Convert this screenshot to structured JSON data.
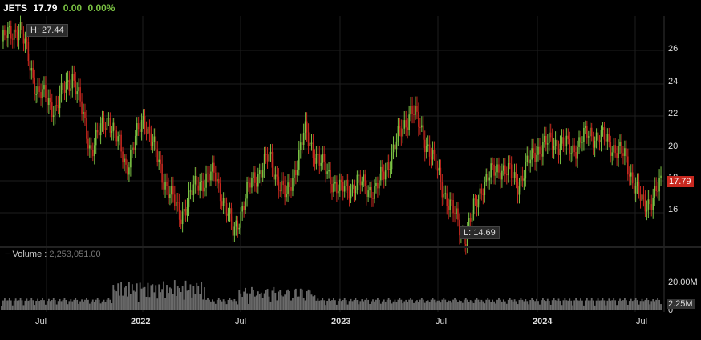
{
  "header": {
    "symbol": "JETS",
    "last": "17.79",
    "change": "0.00",
    "change_pct": "0.00%",
    "up_color": "#7ac143",
    "down_color": "#c8281f"
  },
  "volume_header": {
    "label": "Volume",
    "separator": ":",
    "value": "2,253,051.00"
  },
  "annotations": {
    "high": "H: 27.44",
    "low": "L: 14.69",
    "last_price_tag": "17.79",
    "last_volume_tag": "2.25M"
  },
  "price_axis": [
    "26",
    "24",
    "22",
    "20",
    "18",
    "16"
  ],
  "volume_axis": [
    "20.00M",
    "0"
  ],
  "time_axis": [
    "Jul",
    "2022",
    "Jul",
    "2023",
    "Jul",
    "2024",
    "Jul"
  ],
  "chart_data": {
    "type": "line",
    "title": "JETS",
    "xlabel": "",
    "ylabel": "",
    "ylim": [
      14,
      28
    ],
    "grid": true,
    "series": [
      {
        "name": "JETS",
        "x": [
          "2021-03",
          "2021-05",
          "2021-07",
          "2021-09",
          "2021-11",
          "2022-01",
          "2022-02",
          "2022-03",
          "2022-04",
          "2022-05",
          "2022-06",
          "2022-07",
          "2022-08",
          "2022-09",
          "2022-10",
          "2022-11",
          "2022-12",
          "2023-01",
          "2023-02",
          "2023-03",
          "2023-04",
          "2023-05",
          "2023-06",
          "2023-07",
          "2023-08",
          "2023-09",
          "2023-10",
          "2023-11",
          "2023-12",
          "2024-01",
          "2024-02",
          "2024-03",
          "2024-04",
          "2024-05",
          "2024-06",
          "2024-07",
          "2024-08",
          "2024-09"
        ],
        "values": [
          26.5,
          27.4,
          23.5,
          22.5,
          24.5,
          20.0,
          22.0,
          19.0,
          22.0,
          18.5,
          16.0,
          18.0,
          18.5,
          15.0,
          18.0,
          19.5,
          17.0,
          21.0,
          19.0,
          17.5,
          18.0,
          17.5,
          20.0,
          22.5,
          20.0,
          17.0,
          14.7,
          18.0,
          19.0,
          18.0,
          20.0,
          20.5,
          20.0,
          21.0,
          20.5,
          19.5,
          16.5,
          17.8
        ]
      }
    ],
    "volume_series": {
      "name": "Volume",
      "ylim": [
        0,
        25
      ]
    }
  }
}
